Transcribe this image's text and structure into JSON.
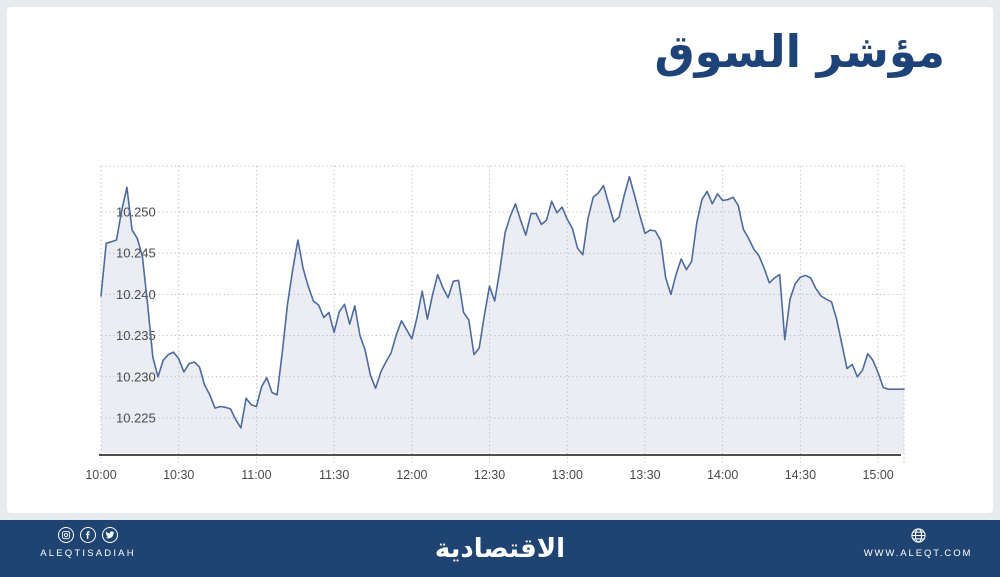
{
  "page_title": "مؤشر السوق",
  "colors": {
    "title_text": "#1e4379",
    "footer_bg": "#1f4472",
    "page_bg": "#e9eaeb",
    "card_bg": "#ffffff",
    "line": "#4d6b9f",
    "area_fill": "#ebedf3",
    "grid": "#b5b8bd",
    "axis": "#4d4d4d",
    "tick_text": "#4a4a4a"
  },
  "chart_data": {
    "type": "area",
    "title": "مؤشر السوق",
    "xlabel": "",
    "ylabel": "",
    "grid": "dotted",
    "legend": "none",
    "x_start": "10:00",
    "x_end": "15:10",
    "x_step_minutes": 2,
    "ylim": [
      10218,
      10257
    ],
    "x_ticks": [
      {
        "m": 0,
        "label": "10:00"
      },
      {
        "m": 30,
        "label": "10:30"
      },
      {
        "m": 60,
        "label": "11:00"
      },
      {
        "m": 90,
        "label": "11:30"
      },
      {
        "m": 120,
        "label": "12:00"
      },
      {
        "m": 150,
        "label": "12:30"
      },
      {
        "m": 180,
        "label": "13:00"
      },
      {
        "m": 210,
        "label": "13:30"
      },
      {
        "m": 240,
        "label": "14:00"
      },
      {
        "m": 270,
        "label": "14:30"
      },
      {
        "m": 300,
        "label": "15:00"
      }
    ],
    "y_ticks": [
      {
        "v": 10225,
        "label": "10.225"
      },
      {
        "v": 10230,
        "label": "10.230"
      },
      {
        "v": 10235,
        "label": "10.235"
      },
      {
        "v": 10240,
        "label": "10.240"
      },
      {
        "v": 10245,
        "label": "10.245"
      },
      {
        "v": 10250,
        "label": "10.250"
      }
    ],
    "values": [
      10239.8,
      10246.2,
      10246.4,
      10246.6,
      10250.2,
      10253.0,
      10247.8,
      10246.8,
      10244.6,
      10238.8,
      10232.4,
      10230.0,
      10232.0,
      10232.7,
      10233.0,
      10232.2,
      10230.6,
      10231.6,
      10231.8,
      10231.2,
      10229.0,
      10227.8,
      10226.2,
      10226.4,
      10226.3,
      10226.1,
      10224.8,
      10223.8,
      10227.4,
      10226.6,
      10226.4,
      10228.8,
      10229.9,
      10228.1,
      10227.8,
      10233.0,
      10238.8,
      10243.0,
      10246.6,
      10243.2,
      10241.0,
      10239.2,
      10238.7,
      10237.2,
      10237.8,
      10235.4,
      10237.9,
      10238.8,
      10236.4,
      10238.6,
      10235.0,
      10233.2,
      10230.2,
      10228.6,
      10230.6,
      10231.8,
      10232.9,
      10235.1,
      10236.8,
      10235.7,
      10234.6,
      10237.2,
      10240.4,
      10237.0,
      10240.0,
      10242.4,
      10240.8,
      10239.6,
      10241.6,
      10241.7,
      10237.8,
      10236.9,
      10232.7,
      10233.5,
      10237.5,
      10241.0,
      10239.2,
      10243.0,
      10247.5,
      10249.5,
      10251.0,
      10249.0,
      10247.2,
      10249.8,
      10249.8,
      10248.5,
      10249.0,
      10251.3,
      10249.9,
      10250.6,
      10249.1,
      10248.0,
      10245.6,
      10244.8,
      10249.2,
      10251.8,
      10252.3,
      10253.2,
      10251.0,
      10248.8,
      10249.4,
      10252.0,
      10254.3,
      10252.0,
      10249.6,
      10247.4,
      10247.8,
      10247.7,
      10246.6,
      10242.0,
      10240.0,
      10242.4,
      10244.3,
      10243.0,
      10244.0,
      10248.7,
      10251.5,
      10252.5,
      10251.0,
      10252.2,
      10251.4,
      10251.5,
      10251.8,
      10250.8,
      10247.9,
      10246.8,
      10245.5,
      10244.7,
      10243.2,
      10241.4,
      10242.0,
      10242.4,
      10234.5,
      10239.4,
      10241.3,
      10242.1,
      10242.3,
      10242.0,
      10240.7,
      10239.8,
      10239.4,
      10239.1,
      10237.0,
      10234.0,
      10231.0,
      10231.5,
      10230.0,
      10230.8,
      10232.8,
      10232.0,
      10230.5,
      10228.7,
      10228.5,
      10228.5,
      10228.5,
      10228.5
    ]
  },
  "footer": {
    "brand_handle": "ALEQTISADIAH",
    "logo_text": "الاقتصادية",
    "website": "WWW.ALEQT.COM",
    "social_icons": [
      "instagram-icon",
      "facebook-icon",
      "twitter-icon"
    ],
    "website_icon": "globe-icon"
  }
}
